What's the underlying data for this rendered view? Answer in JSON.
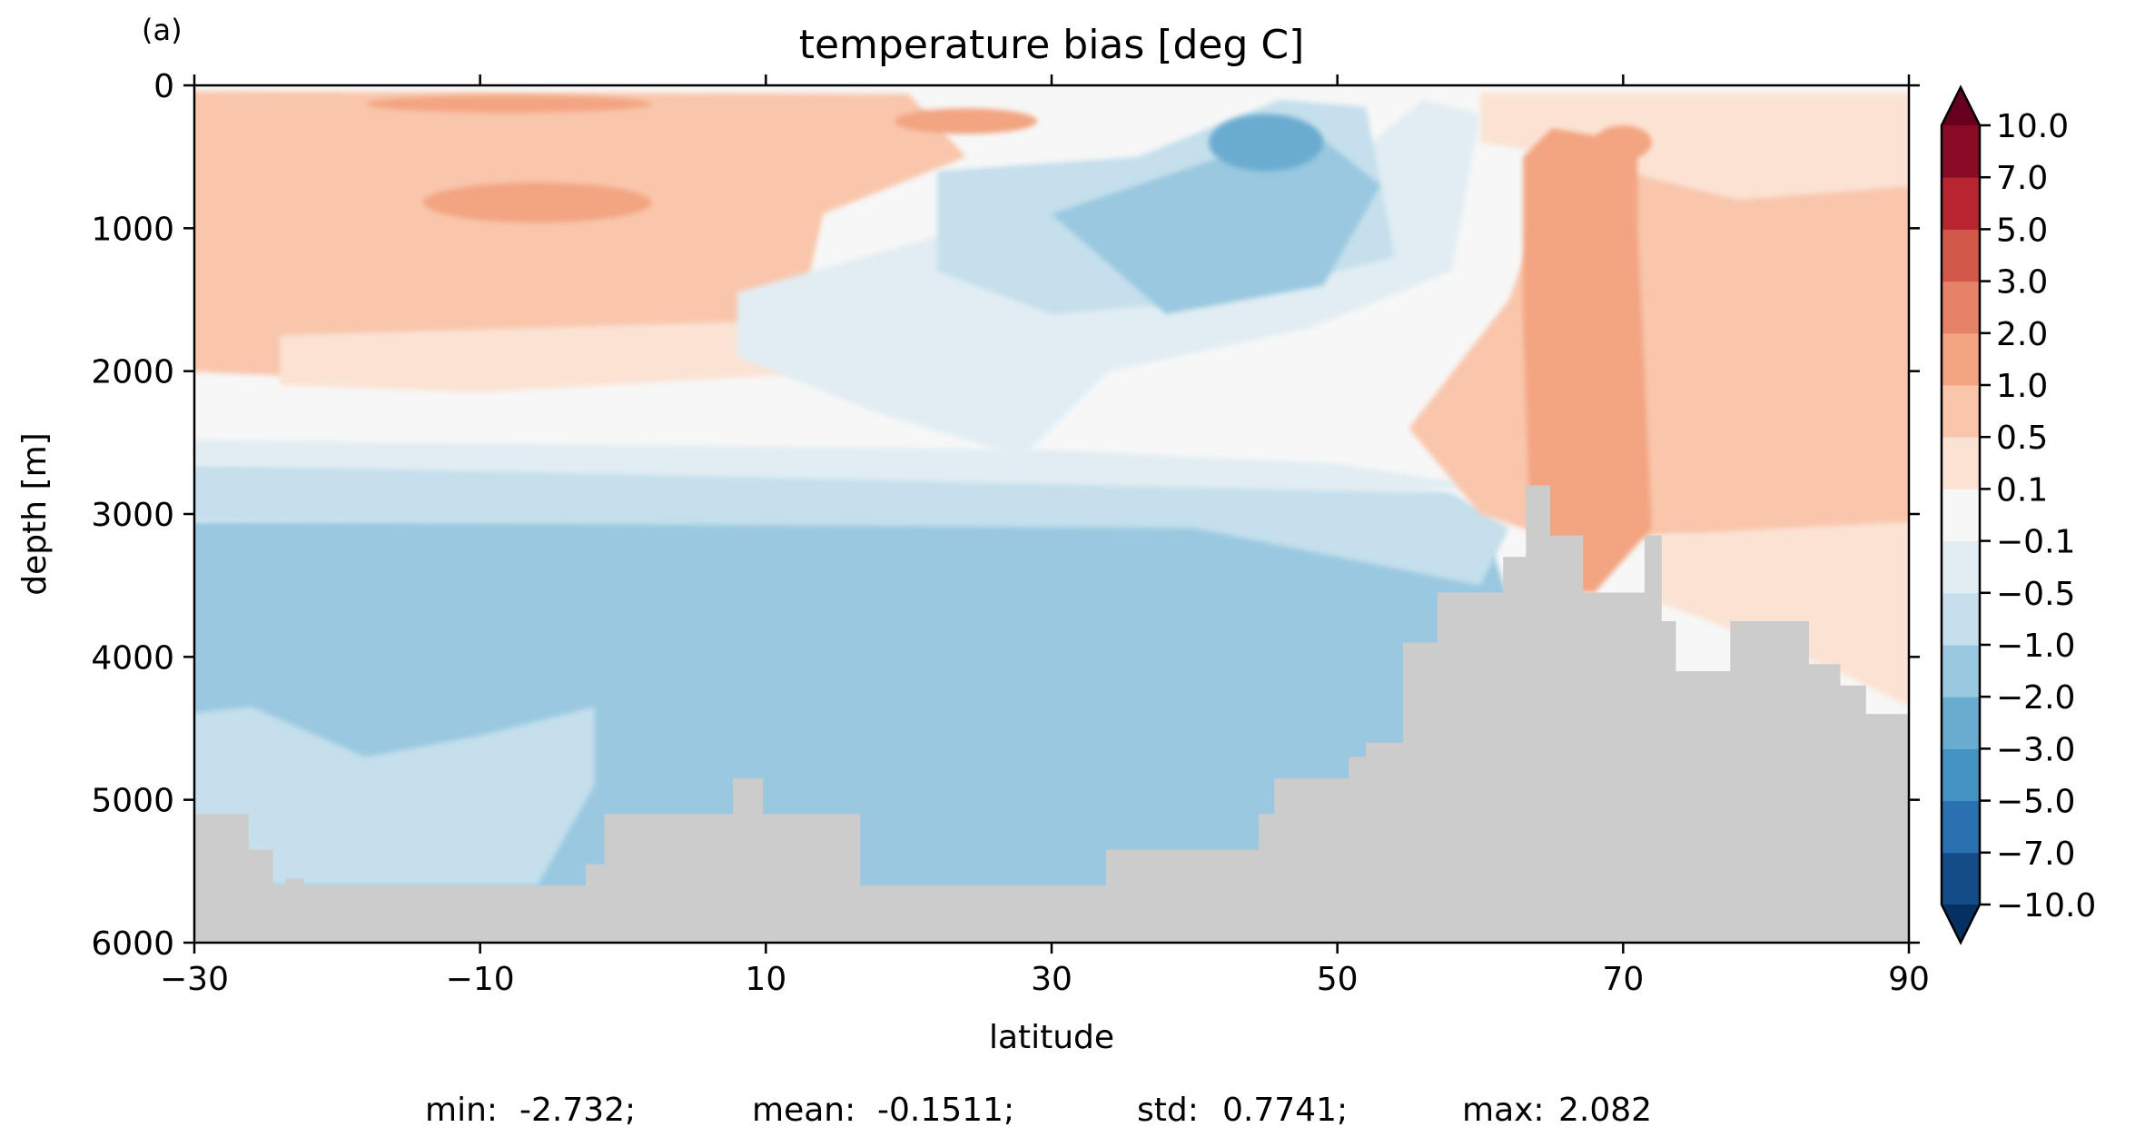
{
  "chart_data": {
    "type": "heatmap",
    "subtype": "filled-contour",
    "panel_label": "(a)",
    "title": "temperature bias [deg C]",
    "xlabel": "latitude",
    "ylabel": "depth [m]",
    "xlim": [
      -30,
      90
    ],
    "ylim": [
      6000,
      0
    ],
    "y_inverted": true,
    "xticks": [
      -30,
      -10,
      10,
      30,
      50,
      70,
      90
    ],
    "xtick_labels": [
      "−30",
      "−10",
      "10",
      "30",
      "50",
      "70",
      "90"
    ],
    "yticks": [
      0,
      1000,
      2000,
      3000,
      4000,
      5000,
      6000
    ],
    "ytick_labels": [
      "0",
      "1000",
      "2000",
      "3000",
      "4000",
      "5000",
      "6000"
    ],
    "grid": false,
    "colormap": "RdBu_r",
    "colorbar": {
      "extend": "both",
      "levels": [
        -10,
        -7,
        -5,
        -3,
        -2,
        -1,
        -0.5,
        -0.1,
        0.1,
        0.5,
        1,
        2,
        3,
        5,
        7,
        10
      ],
      "tick_labels": [
        "−10.0",
        "−7.0",
        "−5.0",
        "−3.0",
        "−2.0",
        "−1.0",
        "−0.5",
        "−0.1",
        "0.1",
        "0.5",
        "1.0",
        "2.0",
        "3.0",
        "5.0",
        "7.0",
        "10.0"
      ],
      "colors": [
        "#053061",
        "#144c87",
        "#2971b1",
        "#4393c3",
        "#6aacd0",
        "#99c8e0",
        "#c5dfec",
        "#e1edf3",
        "#f7f7f7",
        "#fbe3d4",
        "#f9c6ac",
        "#f3a481",
        "#e58267",
        "#d25849",
        "#b82531",
        "#8a0b25",
        "#67001f"
      ]
    },
    "land_color": "#cccccc",
    "regions": [
      {
        "level": -1.0,
        "value_range": [
          -2,
          -1
        ],
        "lat_range": [
          -30,
          58
        ],
        "depth_range": [
          3050,
          5600
        ]
      },
      {
        "level": -2.0,
        "value_range": [
          -3,
          -2
        ],
        "lat_range": [
          38,
          48
        ],
        "depth_range": [
          200,
          650
        ]
      },
      {
        "level": 0.5,
        "value_range": [
          0.5,
          1
        ],
        "lat_range": [
          -30,
          10
        ],
        "depth_range": [
          0,
          2000
        ]
      },
      {
        "level": 1.0,
        "value_range": [
          1,
          2
        ],
        "lat_range": [
          -12,
          0
        ],
        "depth_range": [
          700,
          950
        ]
      },
      {
        "level": 1.0,
        "value_range": [
          1,
          2
        ],
        "lat_range": [
          63,
          72
        ],
        "depth_range": [
          300,
          3550
        ]
      },
      {
        "level": 0.5,
        "value_range": [
          0.5,
          1
        ],
        "lat_range": [
          56,
          90
        ],
        "depth_range": [
          800,
          3150
        ]
      },
      {
        "level": 0.1,
        "value_range": [
          0.1,
          0.5
        ],
        "lat_range": [
          72,
          90
        ],
        "depth_range": [
          2500,
          4300
        ]
      }
    ],
    "bathymetry_depth_by_latitude": {
      "lat": [
        -30,
        -27.6,
        -26.2,
        -24.5,
        -23.6,
        -22.3,
        -17.7,
        -16.3,
        -12.7,
        -5.0,
        -2.6,
        -1.3,
        3.3,
        7.7,
        9.8,
        16.6,
        29.1,
        33.8,
        39.5,
        44.5,
        45.6,
        48.0,
        50.8,
        52.0,
        54.6,
        57.0,
        59.6,
        61.6,
        63.2,
        64.9,
        66.2,
        67.2,
        69.7,
        71.5,
        72.7,
        73.7,
        77.5,
        82.0,
        83.0,
        85.2,
        87.0,
        89.0,
        90.0
      ],
      "depth": [
        5100,
        5100,
        5350,
        5600,
        5550,
        5600,
        5600,
        5600,
        5600,
        5600,
        5450,
        5100,
        5100,
        4850,
        5100,
        5600,
        5600,
        5350,
        5350,
        5100,
        4850,
        4850,
        4700,
        4600,
        3900,
        3550,
        3550,
        3300,
        2800,
        3150,
        3150,
        3550,
        3550,
        3150,
        3750,
        4100,
        3750,
        3750,
        4050,
        4200,
        4400,
        4400,
        4400
      ]
    },
    "stats": [
      {
        "label": "min:",
        "value": "-2.732;"
      },
      {
        "label": "mean:",
        "value": "-0.1511;"
      },
      {
        "label": "std:",
        "value": "0.7741;"
      },
      {
        "label": "max:",
        "value": "2.082"
      }
    ]
  }
}
